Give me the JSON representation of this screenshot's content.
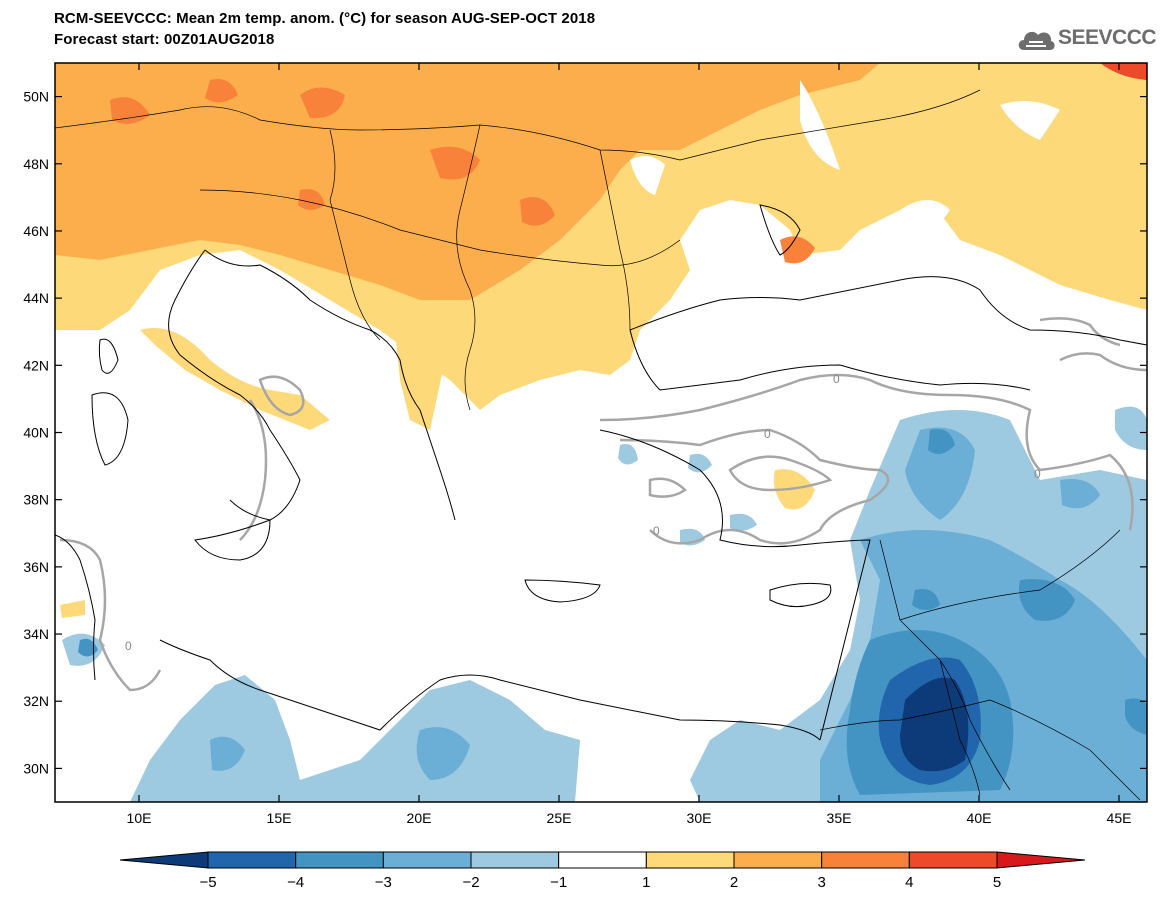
{
  "header": {
    "title_line1": "RCM-SEEVCCC: Mean 2m temp. anom. (°C) for season AUG-SEP-OCT 2018",
    "title_line2": "Forecast start: 00Z01AUG2018"
  },
  "logo": {
    "text": "SEEVCCC",
    "icon": "cloud-icon"
  },
  "map": {
    "lon_range": [
      7,
      46
    ],
    "lat_range": [
      29,
      51
    ],
    "lat_ticks": [
      {
        "value": 50,
        "label": "50N"
      },
      {
        "value": 48,
        "label": "48N"
      },
      {
        "value": 46,
        "label": "46N"
      },
      {
        "value": 44,
        "label": "44N"
      },
      {
        "value": 42,
        "label": "42N"
      },
      {
        "value": 40,
        "label": "40N"
      },
      {
        "value": 38,
        "label": "38N"
      },
      {
        "value": 36,
        "label": "36N"
      },
      {
        "value": 34,
        "label": "34N"
      },
      {
        "value": 32,
        "label": "32N"
      },
      {
        "value": 30,
        "label": "30N"
      }
    ],
    "lon_ticks": [
      {
        "value": 10,
        "label": "10E"
      },
      {
        "value": 15,
        "label": "15E"
      },
      {
        "value": 20,
        "label": "20E"
      },
      {
        "value": 25,
        "label": "25E"
      },
      {
        "value": 30,
        "label": "30E"
      },
      {
        "value": 35,
        "label": "35E"
      },
      {
        "value": 40,
        "label": "40E"
      },
      {
        "value": 45,
        "label": "45E"
      }
    ],
    "contour_label": "0"
  },
  "colorbar": {
    "levels": [
      "−5",
      "−4",
      "−3",
      "−2",
      "−1",
      "1",
      "2",
      "3",
      "4",
      "5"
    ],
    "colors": [
      "#0d3a78",
      "#2166ac",
      "#4393c3",
      "#6baed6",
      "#9ecae1",
      "#ffffff",
      "#fdd97a",
      "#fcae4c",
      "#f8823a",
      "#ed4a2a",
      "#d7191c"
    ]
  }
}
